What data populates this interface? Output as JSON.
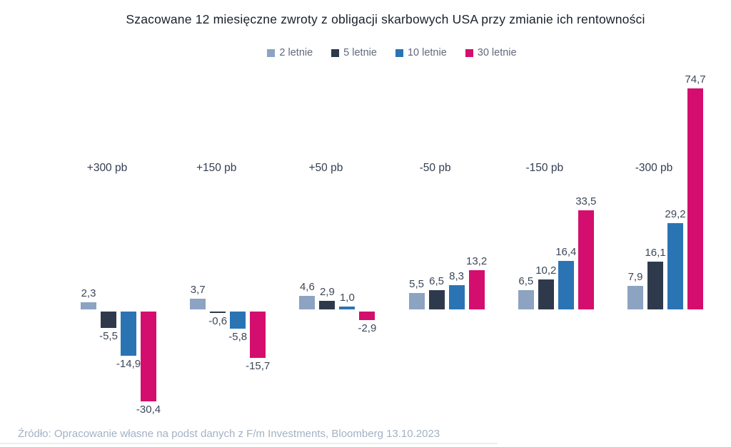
{
  "chart_data": {
    "type": "bar",
    "title": "Szacowane 12 miesięczne zwroty z obligacji skarbowych USA przy zmianie ich rentowności",
    "categories": [
      "+300 pb",
      "+150 pb",
      "+50 pb",
      "-50 pb",
      "-150 pb",
      "-300 pb"
    ],
    "series": [
      {
        "name": "2 letnie",
        "color": "#8CA3C2",
        "values": [
          2.3,
          3.7,
          4.6,
          5.5,
          6.5,
          7.9
        ]
      },
      {
        "name": "5 letnie",
        "color": "#2E3A4C",
        "values": [
          -5.5,
          -0.6,
          2.9,
          6.5,
          10.2,
          16.1
        ]
      },
      {
        "name": "10 letnie",
        "color": "#2A74B4",
        "values": [
          -14.9,
          -5.8,
          1.0,
          8.3,
          16.4,
          29.2
        ]
      },
      {
        "name": "30 letnie",
        "color": "#D40E6E",
        "values": [
          -30.4,
          -15.7,
          -2.9,
          13.2,
          33.5,
          74.7
        ]
      }
    ],
    "value_labels": [
      [
        "2,3",
        "3,7",
        "4,6",
        "5,5",
        "6,5",
        "7,9"
      ],
      [
        "-5,5",
        "-0,6",
        "2,9",
        "6,5",
        "10,2",
        "16,1"
      ],
      [
        "-14,9",
        "-5,8",
        "1,0",
        "8,3",
        "16,4",
        "29,2"
      ],
      [
        "-30,4",
        "-15,7",
        "-2,9",
        "13,2",
        "33,5",
        "74,7"
      ]
    ],
    "decimal_separator": ",",
    "xlabel": "",
    "ylabel": "",
    "axis": {
      "y_axis_visible": false,
      "x_axis_visible": false,
      "gridlines": false,
      "baseline_value": 0,
      "approx_value_range": [
        -30.4,
        74.7
      ]
    },
    "legend_position": "top-center",
    "data_labels_shown": true
  },
  "source": {
    "text": "Źródło: Opracowanie własne na podst danych z F/m Investments, Bloomberg 13.10.2023",
    "color": "#a3b2c4"
  },
  "page": {
    "background": "#ffffff"
  }
}
